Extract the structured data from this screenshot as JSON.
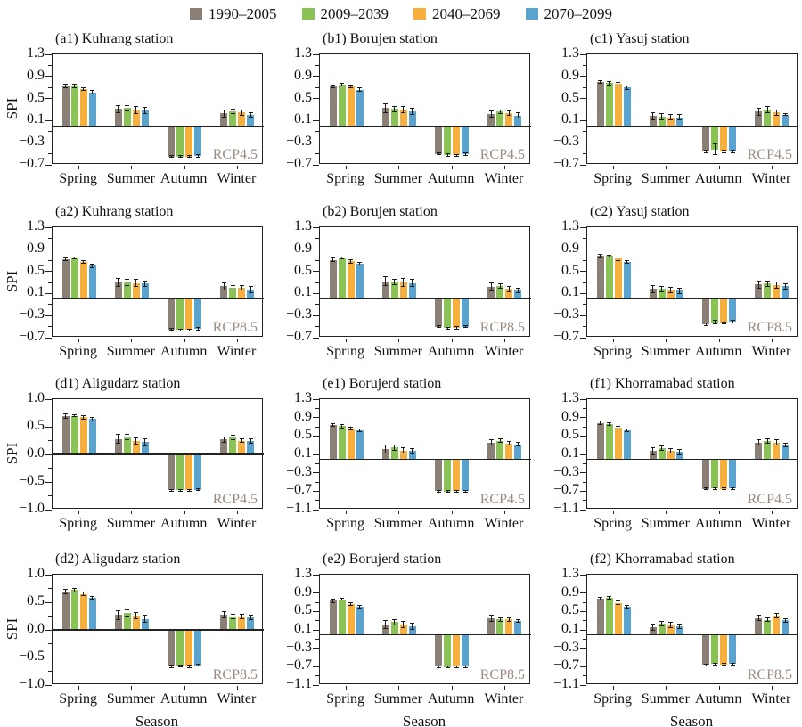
{
  "ylabel": "SPI",
  "xlabel": "Season",
  "scenario_color": "#9c8c81",
  "legend": {
    "items": [
      {
        "label": "1990–2005",
        "color": "#8b8076"
      },
      {
        "label": "2009–2039",
        "color": "#8bc255"
      },
      {
        "label": "2040–2069",
        "color": "#f7b03e"
      },
      {
        "label": "2070–2099",
        "color": "#5ba3cf"
      }
    ]
  },
  "chart_data": [
    {
      "type": "bar",
      "id": "a1",
      "row": 0,
      "col": 0,
      "title": "(a1) Kuhrang station",
      "scenario": "RCP4.5",
      "ylim": [
        -0.7,
        1.3
      ],
      "yticks": [
        1.3,
        0.9,
        0.5,
        0.1,
        -0.3,
        -0.7
      ],
      "yticklabels": [
        "1.3",
        "0.9",
        "0.5",
        "0.1",
        "−0.3",
        "−0.7"
      ],
      "categories": [
        "Spring",
        "Summer",
        "Autumn",
        "Winter"
      ],
      "series": [
        {
          "name": "1990–2005",
          "values": [
            0.73,
            0.31,
            -0.55,
            0.23
          ],
          "errors": [
            0.03,
            0.07,
            0.02,
            0.06
          ]
        },
        {
          "name": "2009–2039",
          "values": [
            0.73,
            0.33,
            -0.55,
            0.27
          ],
          "errors": [
            0.03,
            0.05,
            0.02,
            0.04
          ]
        },
        {
          "name": "2040–2069",
          "values": [
            0.67,
            0.29,
            -0.55,
            0.25
          ],
          "errors": [
            0.03,
            0.06,
            0.02,
            0.05
          ]
        },
        {
          "name": "2070–2099",
          "values": [
            0.61,
            0.28,
            -0.54,
            0.21
          ],
          "errors": [
            0.03,
            0.06,
            0.02,
            0.04
          ]
        }
      ]
    },
    {
      "type": "bar",
      "id": "b1",
      "row": 0,
      "col": 1,
      "title": "(b1) Borujen station",
      "scenario": "RCP4.5",
      "ylim": [
        -0.7,
        1.3
      ],
      "yticks": [
        1.3,
        0.9,
        0.5,
        0.1,
        -0.3,
        -0.7
      ],
      "yticklabels": [
        "1.3",
        "0.9",
        "0.5",
        "0.1",
        "−0.3",
        "−0.7"
      ],
      "categories": [
        "Spring",
        "Summer",
        "Autumn",
        "Winter"
      ],
      "series": [
        {
          "name": "1990–2005",
          "values": [
            0.72,
            0.33,
            -0.5,
            0.22
          ],
          "errors": [
            0.03,
            0.08,
            0.02,
            0.06
          ]
        },
        {
          "name": "2009–2039",
          "values": [
            0.75,
            0.31,
            -0.52,
            0.26
          ],
          "errors": [
            0.02,
            0.05,
            0.02,
            0.04
          ]
        },
        {
          "name": "2040–2069",
          "values": [
            0.72,
            0.3,
            -0.53,
            0.24
          ],
          "errors": [
            0.03,
            0.06,
            0.02,
            0.04
          ]
        },
        {
          "name": "2070–2099",
          "values": [
            0.66,
            0.27,
            -0.51,
            0.19
          ],
          "errors": [
            0.03,
            0.06,
            0.02,
            0.05
          ]
        }
      ]
    },
    {
      "type": "bar",
      "id": "c1",
      "row": 0,
      "col": 2,
      "title": "(c1) Yasuj station",
      "scenario": "RCP4.5",
      "ylim": [
        -0.7,
        1.3
      ],
      "yticks": [
        1.3,
        0.9,
        0.5,
        0.1,
        -0.3,
        -0.7
      ],
      "yticklabels": [
        "1.3",
        "0.9",
        "0.5",
        "0.1",
        "−0.3",
        "−0.7"
      ],
      "categories": [
        "Spring",
        "Summer",
        "Autumn",
        "Winter"
      ],
      "series": [
        {
          "name": "1990–2005",
          "values": [
            0.8,
            0.18,
            -0.46,
            0.26
          ],
          "errors": [
            0.03,
            0.07,
            0.02,
            0.07
          ]
        },
        {
          "name": "2009–2039",
          "values": [
            0.78,
            0.17,
            -0.42,
            0.3
          ],
          "errors": [
            0.03,
            0.05,
            0.1,
            0.06
          ]
        },
        {
          "name": "2040–2069",
          "values": [
            0.76,
            0.16,
            -0.46,
            0.25
          ],
          "errors": [
            0.04,
            0.05,
            0.02,
            0.05
          ]
        },
        {
          "name": "2070–2099",
          "values": [
            0.7,
            0.16,
            -0.46,
            0.21
          ],
          "errors": [
            0.03,
            0.05,
            0.02,
            0.02
          ]
        }
      ]
    },
    {
      "type": "bar",
      "id": "a2",
      "row": 1,
      "col": 0,
      "title": "(a2) Kuhrang station",
      "scenario": "RCP8.5",
      "ylim": [
        -0.7,
        1.3
      ],
      "yticks": [
        1.3,
        0.9,
        0.5,
        0.1,
        -0.3,
        -0.7
      ],
      "yticklabels": [
        "1.3",
        "0.9",
        "0.5",
        "0.1",
        "−0.3",
        "−0.7"
      ],
      "categories": [
        "Spring",
        "Summer",
        "Autumn",
        "Winter"
      ],
      "series": [
        {
          "name": "1990–2005",
          "values": [
            0.72,
            0.3,
            -0.55,
            0.23
          ],
          "errors": [
            0.03,
            0.08,
            0.02,
            0.06
          ]
        },
        {
          "name": "2009–2039",
          "values": [
            0.74,
            0.3,
            -0.56,
            0.21
          ],
          "errors": [
            0.02,
            0.05,
            0.02,
            0.04
          ]
        },
        {
          "name": "2040–2069",
          "values": [
            0.67,
            0.29,
            -0.56,
            0.21
          ],
          "errors": [
            0.03,
            0.06,
            0.02,
            0.04
          ]
        },
        {
          "name": "2070–2099",
          "values": [
            0.6,
            0.28,
            -0.54,
            0.17
          ],
          "errors": [
            0.03,
            0.05,
            0.02,
            0.05
          ]
        }
      ]
    },
    {
      "type": "bar",
      "id": "b2",
      "row": 1,
      "col": 1,
      "title": "(b2) Borujen station",
      "scenario": "RCP8.5",
      "ylim": [
        -0.7,
        1.3
      ],
      "yticks": [
        1.3,
        0.9,
        0.5,
        0.1,
        -0.3,
        -0.7
      ],
      "yticklabels": [
        "1.3",
        "0.9",
        "0.5",
        "0.1",
        "−0.3",
        "−0.7"
      ],
      "categories": [
        "Spring",
        "Summer",
        "Autumn",
        "Winter"
      ],
      "series": [
        {
          "name": "1990–2005",
          "values": [
            0.71,
            0.32,
            -0.5,
            0.22
          ],
          "errors": [
            0.03,
            0.08,
            0.02,
            0.07
          ]
        },
        {
          "name": "2009–2039",
          "values": [
            0.74,
            0.31,
            -0.53,
            0.23
          ],
          "errors": [
            0.02,
            0.05,
            0.02,
            0.04
          ]
        },
        {
          "name": "2040–2069",
          "values": [
            0.68,
            0.3,
            -0.52,
            0.18
          ],
          "errors": [
            0.03,
            0.07,
            0.02,
            0.05
          ]
        },
        {
          "name": "2070–2099",
          "values": [
            0.64,
            0.29,
            -0.5,
            0.16
          ],
          "errors": [
            0.03,
            0.06,
            0.02,
            0.04
          ]
        }
      ]
    },
    {
      "type": "bar",
      "id": "c2",
      "row": 1,
      "col": 2,
      "title": "(c2) Yasuj station",
      "scenario": "RCP8.5",
      "ylim": [
        -0.7,
        1.3
      ],
      "yticks": [
        1.3,
        0.9,
        0.5,
        0.1,
        -0.3,
        -0.7
      ],
      "yticklabels": [
        "1.3",
        "0.9",
        "0.5",
        "0.1",
        "−0.3",
        "−0.7"
      ],
      "categories": [
        "Spring",
        "Summer",
        "Autumn",
        "Winter"
      ],
      "series": [
        {
          "name": "1990–2005",
          "values": [
            0.78,
            0.18,
            -0.46,
            0.26
          ],
          "errors": [
            0.03,
            0.07,
            0.02,
            0.06
          ]
        },
        {
          "name": "2009–2039",
          "values": [
            0.78,
            0.18,
            -0.42,
            0.28
          ],
          "errors": [
            0.02,
            0.05,
            0.03,
            0.05
          ]
        },
        {
          "name": "2040–2069",
          "values": [
            0.73,
            0.16,
            -0.43,
            0.25
          ],
          "errors": [
            0.03,
            0.05,
            0.02,
            0.06
          ]
        },
        {
          "name": "2070–2099",
          "values": [
            0.67,
            0.15,
            -0.41,
            0.23
          ],
          "errors": [
            0.03,
            0.05,
            0.02,
            0.05
          ]
        }
      ]
    },
    {
      "type": "bar",
      "id": "d1",
      "row": 2,
      "col": 0,
      "title": "(d1) Aligudarz station",
      "scenario": "RCP4.5",
      "ylim": [
        -1.0,
        1.0
      ],
      "yticks": [
        1.0,
        0.5,
        0.0,
        -0.5,
        -1.0
      ],
      "yticklabels": [
        "1.0",
        "0.5",
        "0.0",
        "−0.5",
        "−1.0"
      ],
      "categories": [
        "Spring",
        "Summer",
        "Autumn",
        "Winter"
      ],
      "series": [
        {
          "name": "1990–2005",
          "values": [
            0.7,
            0.28,
            -0.65,
            0.27
          ],
          "errors": [
            0.04,
            0.08,
            0.02,
            0.05
          ]
        },
        {
          "name": "2009–2039",
          "values": [
            0.7,
            0.31,
            -0.65,
            0.3
          ],
          "errors": [
            0.02,
            0.05,
            0.02,
            0.04
          ]
        },
        {
          "name": "2040–2069",
          "values": [
            0.67,
            0.24,
            -0.65,
            0.25
          ],
          "errors": [
            0.03,
            0.06,
            0.02,
            0.04
          ]
        },
        {
          "name": "2070–2099",
          "values": [
            0.64,
            0.22,
            -0.64,
            0.24
          ],
          "errors": [
            0.03,
            0.07,
            0.02,
            0.04
          ]
        }
      ]
    },
    {
      "type": "bar",
      "id": "e1",
      "row": 2,
      "col": 1,
      "title": "(e1) Borujerd station",
      "scenario": "RCP4.5",
      "ylim": [
        -1.1,
        1.3
      ],
      "yticks": [
        1.3,
        0.9,
        0.5,
        0.1,
        -0.3,
        -0.7,
        -1.1
      ],
      "yticklabels": [
        "1.3",
        "0.9",
        "0.5",
        "0.1",
        "−0.3",
        "−0.7",
        "−1.1"
      ],
      "categories": [
        "Spring",
        "Summer",
        "Autumn",
        "Winter"
      ],
      "series": [
        {
          "name": "1990–2005",
          "values": [
            0.74,
            0.21,
            -0.7,
            0.36
          ],
          "errors": [
            0.03,
            0.09,
            0.02,
            0.05
          ]
        },
        {
          "name": "2009–2039",
          "values": [
            0.71,
            0.25,
            -0.71,
            0.4
          ],
          "errors": [
            0.03,
            0.06,
            0.02,
            0.04
          ]
        },
        {
          "name": "2040–2069",
          "values": [
            0.67,
            0.18,
            -0.7,
            0.34
          ],
          "errors": [
            0.03,
            0.06,
            0.02,
            0.04
          ]
        },
        {
          "name": "2070–2099",
          "values": [
            0.62,
            0.17,
            -0.7,
            0.32
          ],
          "errors": [
            0.03,
            0.06,
            0.02,
            0.04
          ]
        }
      ]
    },
    {
      "type": "bar",
      "id": "f1",
      "row": 2,
      "col": 2,
      "title": "(f1) Khorramabad station",
      "scenario": "RCP4.5",
      "ylim": [
        -1.1,
        1.3
      ],
      "yticks": [
        1.3,
        0.9,
        0.5,
        0.1,
        -0.3,
        -0.7,
        -1.1
      ],
      "yticklabels": [
        "1.3",
        "0.9",
        "0.5",
        "0.1",
        "−0.3",
        "−0.7",
        "−1.1"
      ],
      "categories": [
        "Spring",
        "Summer",
        "Autumn",
        "Winter"
      ],
      "series": [
        {
          "name": "1990–2005",
          "values": [
            0.78,
            0.17,
            -0.65,
            0.36
          ],
          "errors": [
            0.04,
            0.07,
            0.02,
            0.06
          ]
        },
        {
          "name": "2009–2039",
          "values": [
            0.75,
            0.24,
            -0.64,
            0.39
          ],
          "errors": [
            0.03,
            0.05,
            0.02,
            0.05
          ]
        },
        {
          "name": "2040–2069",
          "values": [
            0.68,
            0.17,
            -0.65,
            0.36
          ],
          "errors": [
            0.03,
            0.05,
            0.02,
            0.05
          ]
        },
        {
          "name": "2070–2099",
          "values": [
            0.63,
            0.15,
            -0.64,
            0.3
          ],
          "errors": [
            0.03,
            0.06,
            0.02,
            0.04
          ]
        }
      ]
    },
    {
      "type": "bar",
      "id": "d2",
      "row": 3,
      "col": 0,
      "title": "(d2) Aligudarz station",
      "scenario": "RCP8.5",
      "ylim": [
        -1.0,
        1.0
      ],
      "yticks": [
        1.0,
        0.5,
        0.0,
        -0.5,
        -1.0
      ],
      "yticklabels": [
        "1.0",
        "0.5",
        "0.0",
        "−0.5",
        "−1.0"
      ],
      "categories": [
        "Spring",
        "Summer",
        "Autumn",
        "Winter"
      ],
      "series": [
        {
          "name": "1990–2005",
          "values": [
            0.7,
            0.27,
            -0.66,
            0.27
          ],
          "errors": [
            0.04,
            0.08,
            0.02,
            0.06
          ]
        },
        {
          "name": "2009–2039",
          "values": [
            0.72,
            0.31,
            -0.65,
            0.24
          ],
          "errors": [
            0.03,
            0.06,
            0.02,
            0.04
          ]
        },
        {
          "name": "2040–2069",
          "values": [
            0.65,
            0.26,
            -0.66,
            0.24
          ],
          "errors": [
            0.03,
            0.06,
            0.02,
            0.04
          ]
        },
        {
          "name": "2070–2099",
          "values": [
            0.58,
            0.2,
            -0.64,
            0.22
          ],
          "errors": [
            0.03,
            0.07,
            0.02,
            0.04
          ]
        }
      ]
    },
    {
      "type": "bar",
      "id": "e2",
      "row": 3,
      "col": 1,
      "title": "(e2) Borujerd station",
      "scenario": "RCP8.5",
      "ylim": [
        -1.1,
        1.3
      ],
      "yticks": [
        1.3,
        0.9,
        0.5,
        0.1,
        -0.3,
        -0.7,
        -1.1
      ],
      "yticklabels": [
        "1.3",
        "0.9",
        "0.5",
        "0.1",
        "−0.3",
        "−0.7",
        "−1.1"
      ],
      "categories": [
        "Spring",
        "Summer",
        "Autumn",
        "Winter"
      ],
      "series": [
        {
          "name": "1990–2005",
          "values": [
            0.73,
            0.21,
            -0.7,
            0.35
          ],
          "errors": [
            0.03,
            0.09,
            0.02,
            0.06
          ]
        },
        {
          "name": "2009–2039",
          "values": [
            0.76,
            0.27,
            -0.71,
            0.33
          ],
          "errors": [
            0.02,
            0.06,
            0.02,
            0.04
          ]
        },
        {
          "name": "2040–2069",
          "values": [
            0.66,
            0.22,
            -0.7,
            0.33
          ],
          "errors": [
            0.03,
            0.07,
            0.02,
            0.04
          ]
        },
        {
          "name": "2070–2099",
          "values": [
            0.6,
            0.18,
            -0.7,
            0.29
          ],
          "errors": [
            0.03,
            0.07,
            0.02,
            0.03
          ]
        }
      ]
    },
    {
      "type": "bar",
      "id": "f2",
      "row": 3,
      "col": 2,
      "title": "(f2) Khorramabad station",
      "scenario": "RCP8.5",
      "ylim": [
        -1.1,
        1.3
      ],
      "yticks": [
        1.3,
        0.9,
        0.5,
        0.1,
        -0.3,
        -0.7,
        -1.1
      ],
      "yticklabels": [
        "1.3",
        "0.9",
        "0.5",
        "0.1",
        "−0.3",
        "−0.7",
        "−1.1"
      ],
      "categories": [
        "Spring",
        "Summer",
        "Autumn",
        "Winter"
      ],
      "series": [
        {
          "name": "1990–2005",
          "values": [
            0.78,
            0.16,
            -0.66,
            0.36
          ],
          "errors": [
            0.03,
            0.07,
            0.02,
            0.05
          ]
        },
        {
          "name": "2009–2039",
          "values": [
            0.8,
            0.24,
            -0.64,
            0.32
          ],
          "errors": [
            0.03,
            0.05,
            0.02,
            0.04
          ]
        },
        {
          "name": "2040–2069",
          "values": [
            0.69,
            0.2,
            -0.65,
            0.41
          ],
          "errors": [
            0.03,
            0.06,
            0.02,
            0.05
          ]
        },
        {
          "name": "2070–2099",
          "values": [
            0.6,
            0.18,
            -0.64,
            0.31
          ],
          "errors": [
            0.03,
            0.05,
            0.02,
            0.04
          ]
        }
      ]
    }
  ]
}
